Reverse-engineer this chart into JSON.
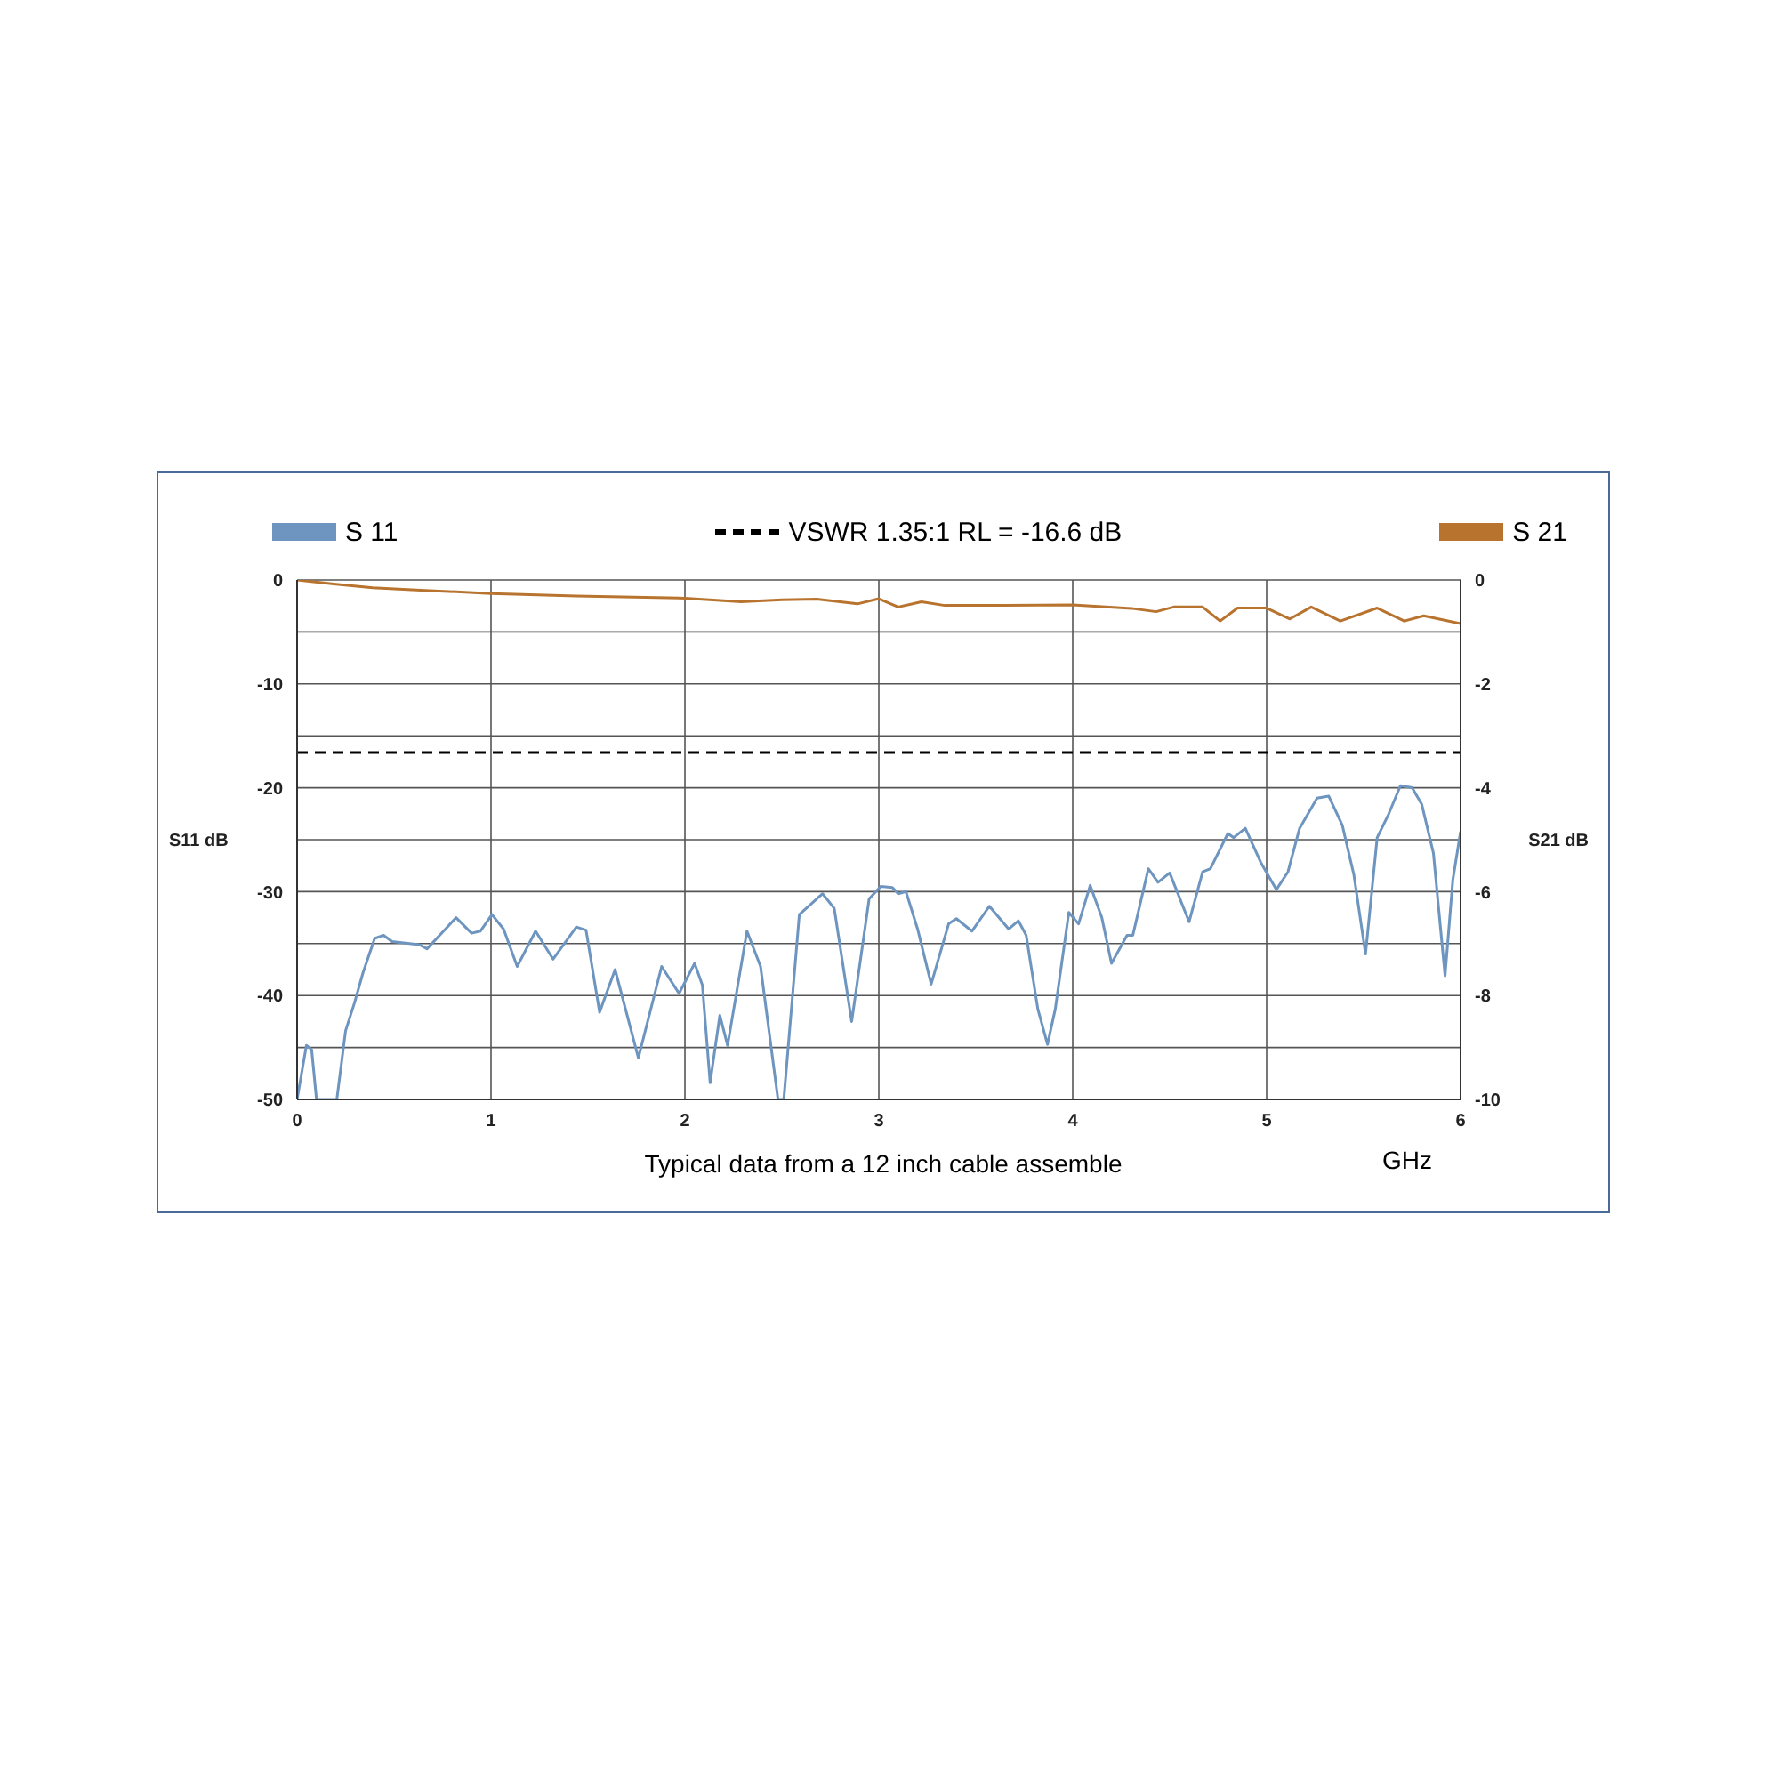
{
  "chart_data": {
    "type": "line",
    "xlabel": "GHz",
    "ylabel": "S11 dB",
    "y2label": "S21 dB",
    "annotations": [
      "Typical data from a 12 inch cable assemble"
    ],
    "xlim": [
      0,
      6
    ],
    "xticks": [
      0,
      1,
      2,
      3,
      4,
      5,
      6
    ],
    "ylim": [
      -50,
      0
    ],
    "yticks": [
      0,
      {
        "value": -5,
        "label": null
      },
      -10,
      {
        "value": -15,
        "label": null
      },
      -20,
      {
        "value": -25,
        "label": null
      },
      -30,
      {
        "value": -35,
        "label": null
      },
      -40,
      {
        "value": -45,
        "label": null
      },
      -50
    ],
    "y2lim": [
      -10,
      0
    ],
    "y2ticks": [
      0,
      -2,
      -4,
      -6,
      -8,
      -10
    ],
    "grid": true,
    "legend": "top",
    "marker": "none",
    "line_style": "solid",
    "ref_lines": [
      {
        "axis": "y",
        "value": -16.6,
        "label": "VSWR 1.35:1 RL = -16.6 dB",
        "color": "#000000",
        "line_style": "dashed"
      }
    ],
    "series": [
      {
        "name": "S 11",
        "color": "#6e95bf",
        "x": [
          0,
          0.048,
          0.075,
          0.1,
          0.205,
          0.25,
          0.296,
          0.34,
          0.4,
          0.446,
          0.49,
          0.63,
          0.67,
          0.75,
          0.82,
          0.9,
          0.945,
          1.005,
          1.065,
          1.135,
          1.23,
          1.32,
          1.44,
          1.49,
          1.56,
          1.64,
          1.76,
          1.88,
          1.97,
          2.05,
          2.09,
          2.13,
          2.18,
          2.22,
          2.32,
          2.39,
          2.48,
          2.51,
          2.59,
          2.71,
          2.77,
          2.86,
          2.95,
          3.01,
          3.07,
          3.1,
          3.14,
          3.2,
          3.27,
          3.36,
          3.4,
          3.48,
          3.57,
          3.67,
          3.72,
          3.76,
          3.82,
          3.87,
          3.91,
          3.98,
          4.03,
          4.09,
          4.15,
          4.2,
          4.28,
          4.31,
          4.39,
          4.44,
          4.5,
          4.6,
          4.67,
          4.71,
          4.8,
          4.83,
          4.89,
          4.97,
          5.05,
          5.11,
          5.17,
          5.26,
          5.32,
          5.39,
          5.45,
          5.51,
          5.57,
          5.63,
          5.69,
          5.75,
          5.8,
          5.86,
          5.92,
          5.96,
          6
        ],
        "values": [
          -50,
          -44.8,
          -45.2,
          -50,
          -50,
          -43.4,
          -40.7,
          -37.8,
          -34.5,
          -34.2,
          -34.8,
          -35.1,
          -35.5,
          -33.9,
          -32.5,
          -34,
          -33.8,
          -32.2,
          -33.6,
          -37.2,
          -33.8,
          -36.5,
          -33.4,
          -33.7,
          -41.6,
          -37.5,
          -46,
          -37.2,
          -39.8,
          -36.9,
          -39,
          -48.4,
          -41.9,
          -44.8,
          -33.8,
          -37.2,
          -50,
          -50,
          -32.2,
          -30.2,
          -31.6,
          -42.5,
          -30.7,
          -29.5,
          -29.6,
          -30.2,
          -30,
          -33.6,
          -38.9,
          -33.1,
          -32.6,
          -33.8,
          -31.4,
          -33.6,
          -32.8,
          -34.2,
          -41.3,
          -44.7,
          -41.3,
          -32,
          -33.1,
          -29.4,
          -32.5,
          -36.9,
          -34.2,
          -34.2,
          -27.8,
          -29.1,
          -28.2,
          -32.9,
          -28.1,
          -27.8,
          -24.4,
          -24.8,
          -23.9,
          -27.2,
          -29.8,
          -28.1,
          -23.9,
          -21,
          -20.8,
          -23.6,
          -28.4,
          -36,
          -24.8,
          -22.5,
          -19.8,
          -20,
          -21.6,
          -26.3,
          -38.1,
          -28.9,
          -24.2
        ]
      },
      {
        "name": "S 21",
        "color": "#b8742e",
        "axis": "y2",
        "x": [
          0,
          0.2,
          0.39,
          0.66,
          1,
          1.44,
          2,
          2.29,
          2.5,
          2.68,
          2.89,
          3,
          3.1,
          3.22,
          3.34,
          3.64,
          4,
          4.31,
          4.43,
          4.52,
          4.67,
          4.76,
          4.85,
          5,
          5.12,
          5.23,
          5.38,
          5.57,
          5.71,
          5.81,
          6
        ],
        "values": [
          0,
          -0.08,
          -0.15,
          -0.2,
          -0.26,
          -0.31,
          -0.35,
          -0.42,
          -0.38,
          -0.37,
          -0.46,
          -0.36,
          -0.52,
          -0.42,
          -0.49,
          -0.49,
          -0.48,
          -0.55,
          -0.61,
          -0.52,
          -0.52,
          -0.79,
          -0.54,
          -0.54,
          -0.75,
          -0.52,
          -0.79,
          -0.54,
          -0.79,
          -0.69,
          -0.84
        ]
      }
    ]
  }
}
